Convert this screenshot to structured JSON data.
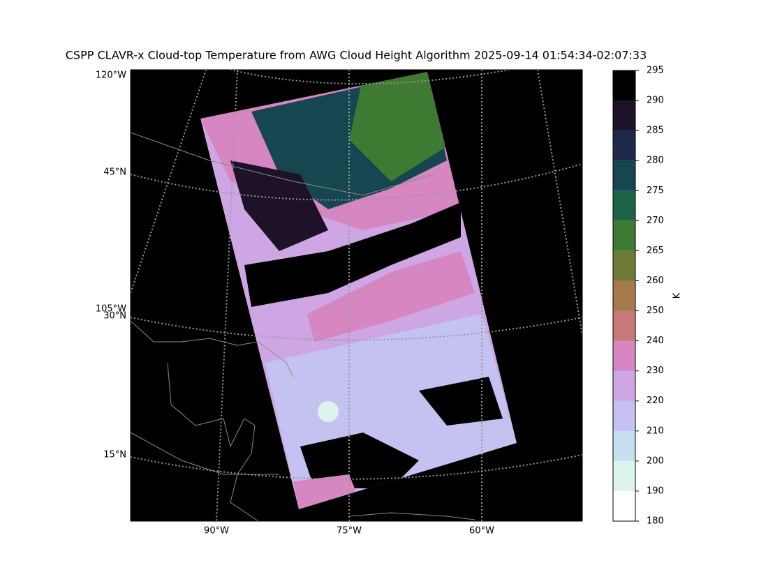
{
  "title": "CSPP CLAVR-x Cloud-top Temperature from AWG Cloud Height Algorithm 2025-09-14 01:54:34-02:07:33",
  "map": {
    "left_labels": [
      "120°W",
      "45°N",
      "105°W",
      "30°N",
      "15°N"
    ],
    "bottom_labels": [
      "90°W",
      "75°W",
      "60°W"
    ]
  },
  "colorbar": {
    "label": "K",
    "boundaries": [
      180,
      190,
      200,
      210,
      220,
      230,
      240,
      250,
      260,
      265,
      270,
      275,
      280,
      285,
      290,
      295
    ],
    "colors": [
      "#ffffff",
      "#ddf3ee",
      "#c6e0f0",
      "#c4c2f0",
      "#cfa6e4",
      "#d686c0",
      "#c77878",
      "#a67a4c",
      "#6e7a35",
      "#3f7a32",
      "#1d6446",
      "#16464f",
      "#1e2848",
      "#1e1228",
      "#000000"
    ]
  }
}
